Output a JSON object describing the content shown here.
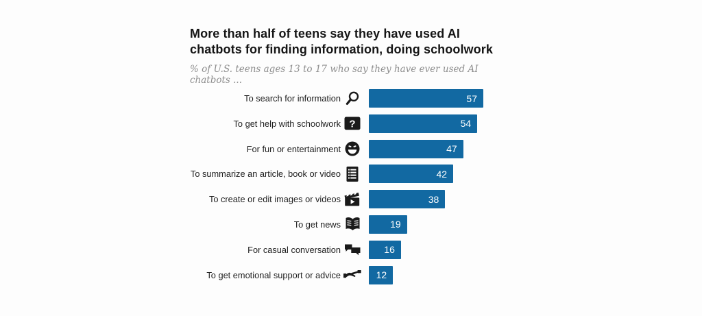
{
  "chart": {
    "accent_color": "#1269a2",
    "icon_color": "#1a1a1a",
    "background": "#fdfdfd"
  },
  "chart_data": {
    "type": "bar",
    "orientation": "horizontal",
    "title": "More than half of teens say they have used AI chatbots for finding information, doing schoolwork",
    "subtitle": "% of U.S. teens ages 13 to 17 who say they have ever used AI chatbots ...",
    "categories": [
      "To search for information",
      "To get help with schoolwork",
      "For fun or entertainment",
      "To summarize an article, book or video",
      "To create or edit images or videos",
      "To get news",
      "For casual conversation",
      "To get emotional support or advice"
    ],
    "values": [
      57,
      54,
      47,
      42,
      38,
      19,
      16,
      12
    ],
    "icons": [
      "search-icon",
      "question-mark-icon",
      "smiley-icon",
      "list-icon",
      "clapperboard-icon",
      "newspaper-icon",
      "speech-bubbles-icon",
      "helping-hand-icon"
    ],
    "bar_color": "#1269a2",
    "value_label_position": "inside-end",
    "xlim": [
      0,
      60
    ],
    "grid": false,
    "legend": false
  }
}
